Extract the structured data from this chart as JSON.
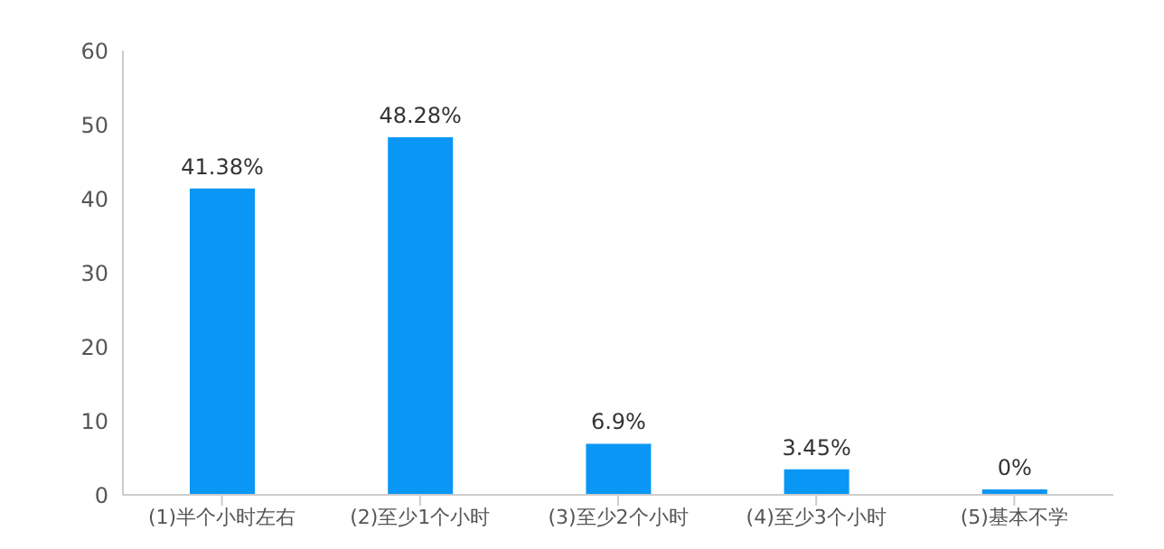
{
  "chart_data": {
    "type": "bar",
    "categories": [
      "(1)半个小时左右",
      "(2)至少1个小时",
      "(3)至少2个小时",
      "(4)至少3个小时",
      "(5)基本不学"
    ],
    "values": [
      41.38,
      48.28,
      6.9,
      3.45,
      0
    ],
    "value_labels": [
      "41.38%",
      "48.28%",
      "6.9%",
      "3.45%",
      "0%"
    ],
    "color": "#0a96f5",
    "ylim": [
      0,
      60
    ],
    "yticks": [
      0,
      10,
      20,
      30,
      40,
      50,
      60
    ],
    "grid": false
  }
}
